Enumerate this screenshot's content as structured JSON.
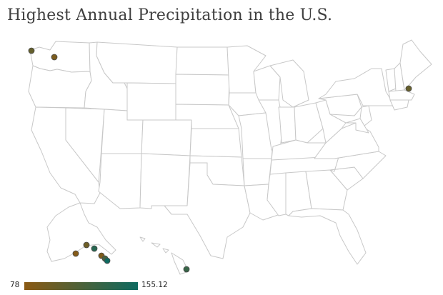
{
  "title": "Highest Annual Precipitation in the U.S.",
  "legend": {
    "min": "78",
    "max": "155.12",
    "color_low": "#8B5A14",
    "color_high": "#0E6A60"
  },
  "colors": {
    "state_fill": "#ffffff",
    "state_stroke": "#c8c8c8",
    "dot_stroke": "#4a4a4a"
  },
  "stations": [
    {
      "id": "wa-olympic",
      "lat": 47.85,
      "lon": -124.0,
      "value": 102
    },
    {
      "id": "wa-cascades",
      "lat": 47.4,
      "lon": -121.4,
      "value": 88
    },
    {
      "id": "nh-mt-washington",
      "lat": 44.27,
      "lon": -71.3,
      "value": 101
    },
    {
      "id": "ak-1",
      "lat": 59.6,
      "lon": -151.6,
      "value": 82
    },
    {
      "id": "ak-2",
      "lat": 60.3,
      "lon": -146.5,
      "value": 96
    },
    {
      "id": "ak-3",
      "lat": 59.5,
      "lon": -139.7,
      "value": 140
    },
    {
      "id": "ak-4",
      "lat": 57.7,
      "lon": -136.2,
      "value": 86
    },
    {
      "id": "ak-5",
      "lat": 56.3,
      "lon": -133.8,
      "value": 120
    },
    {
      "id": "ak-6",
      "lat": 55.4,
      "lon": -131.6,
      "value": 155.12
    },
    {
      "id": "hi-maui",
      "lat": 20.8,
      "lon": -156.3,
      "value": 130
    }
  ]
}
